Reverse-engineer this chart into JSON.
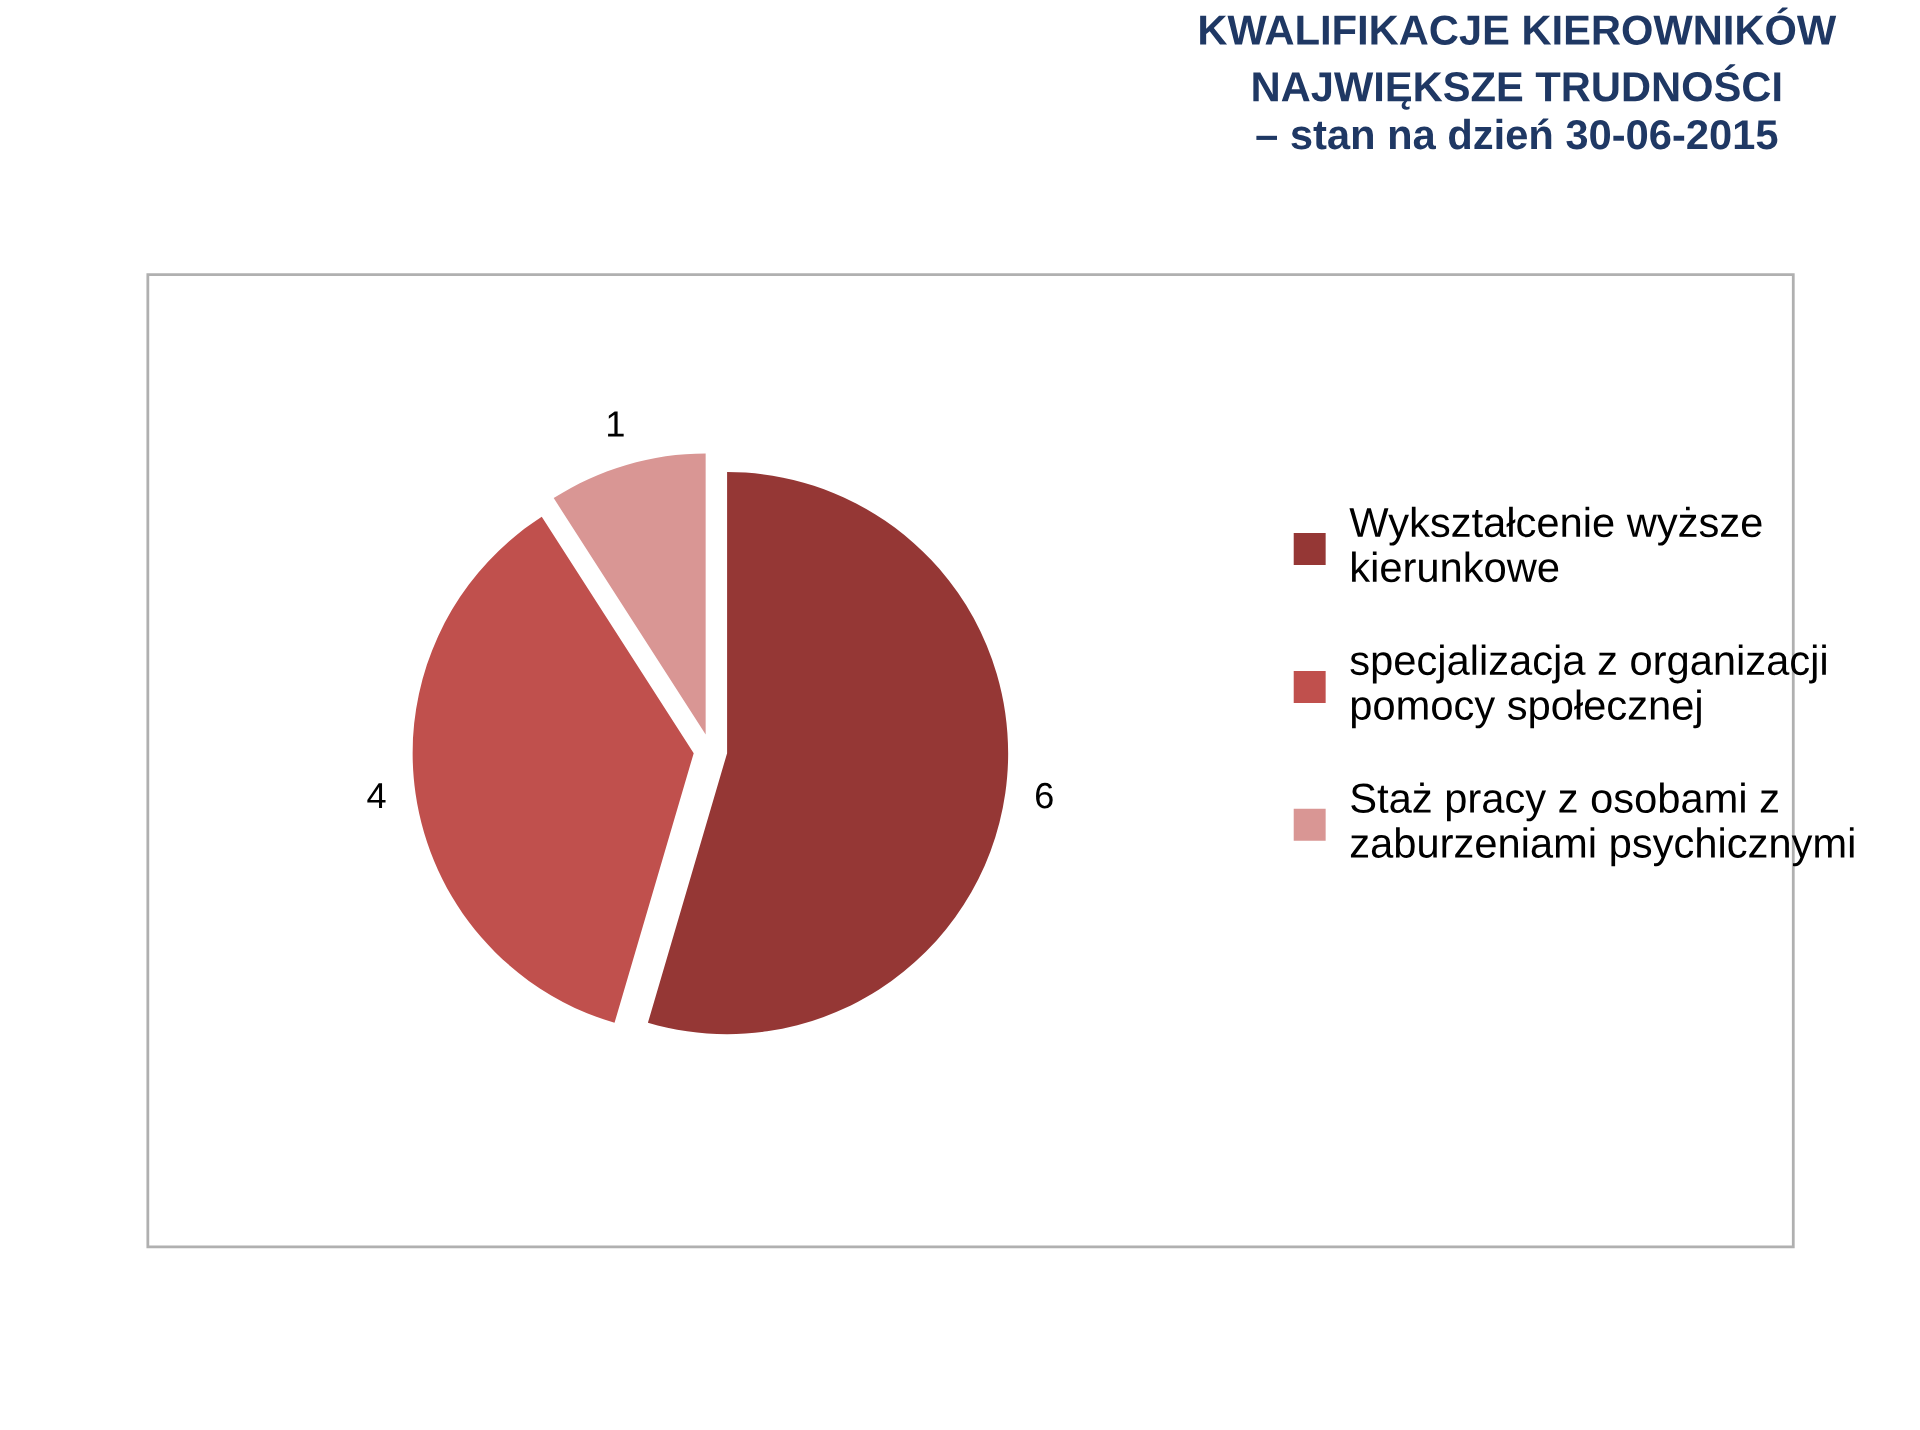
{
  "chart_data": {
    "type": "pie",
    "title": "KWALIFIKACJE KIEROWNIKÓW\nNAJWIĘKSZE TRUDNOŚCI\n– stan na dzień 30-06-2015",
    "categories": [
      "Wykształcenie wyższe kierunkowe",
      "specjalizacja z organizacji pomocy społecznej",
      "Staż pracy z osobami z zaburzeniami psychicznymi"
    ],
    "values": [
      6,
      4,
      1
    ],
    "colors": [
      "#953735",
      "#c0504d",
      "#d99694"
    ],
    "data_labels": true,
    "legend": "right"
  }
}
